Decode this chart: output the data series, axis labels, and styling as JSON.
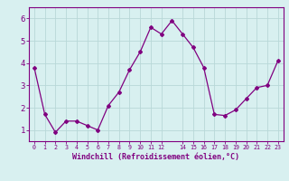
{
  "x": [
    0,
    1,
    2,
    3,
    4,
    5,
    6,
    7,
    8,
    9,
    10,
    11,
    12,
    13,
    14,
    15,
    16,
    17,
    18,
    19,
    20,
    21,
    22,
    23
  ],
  "y": [
    3.8,
    1.7,
    0.9,
    1.4,
    1.4,
    1.2,
    1.0,
    2.1,
    2.7,
    3.7,
    4.5,
    5.6,
    5.3,
    5.9,
    5.3,
    4.7,
    3.8,
    1.7,
    1.65,
    1.9,
    2.4,
    2.9,
    3.0,
    4.1
  ],
  "line_color": "#800080",
  "marker": "D",
  "marker_size": 2,
  "bg_color": "#d8f0f0",
  "grid_color": "#b8d8d8",
  "xlabel": "Windchill (Refroidissement éolien,°C)",
  "ylim": [
    0.5,
    6.5
  ],
  "xlim": [
    -0.5,
    23.5
  ],
  "yticks": [
    1,
    2,
    3,
    4,
    5,
    6
  ],
  "xticks": [
    0,
    1,
    2,
    3,
    4,
    5,
    6,
    7,
    8,
    9,
    10,
    11,
    12,
    14,
    15,
    16,
    17,
    18,
    19,
    20,
    21,
    22,
    23
  ],
  "xtick_labels": [
    "0",
    "1",
    "2",
    "3",
    "4",
    "5",
    "6",
    "7",
    "8",
    "9",
    "10",
    "11",
    "12",
    "14",
    "15",
    "16",
    "17",
    "18",
    "19",
    "20",
    "21",
    "22",
    "23"
  ],
  "spine_color": "#800080",
  "label_color": "#800080",
  "tick_color": "#800080",
  "xlabel_fontsize": 6.0,
  "ytick_fontsize": 6.5,
  "xtick_fontsize": 4.8
}
